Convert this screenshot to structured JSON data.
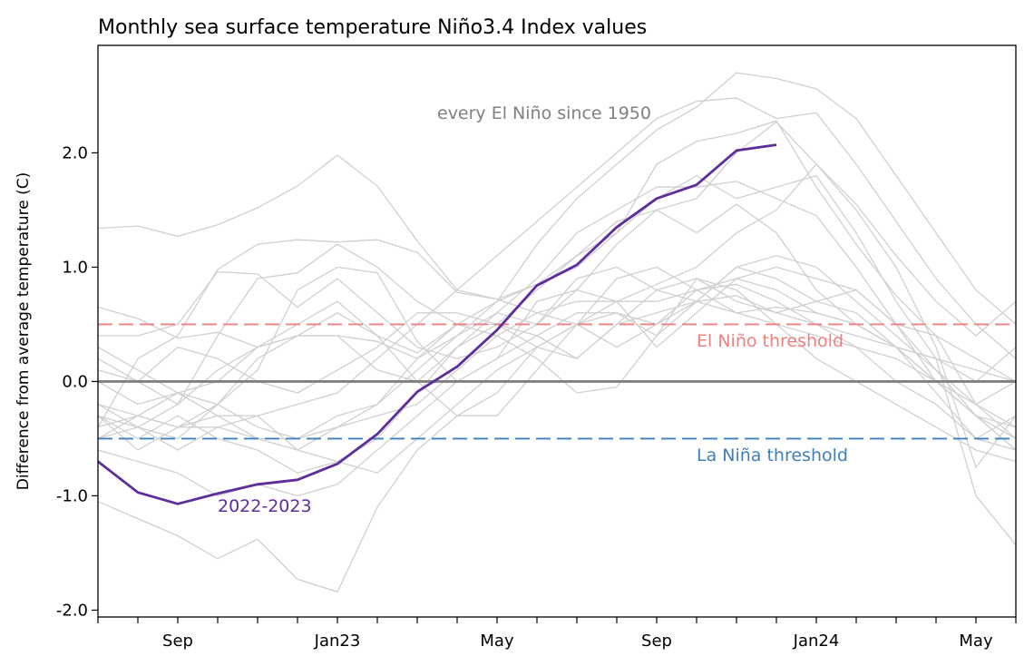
{
  "chart_data": {
    "type": "line",
    "title": "Monthly sea surface temperature Niño3.4 Index values",
    "xlabel": "",
    "ylabel": "Difference from average temperature (C)",
    "ylim": [
      -2.06,
      2.94
    ],
    "grid": false,
    "x": [
      "2022-07",
      "2022-08",
      "2022-09",
      "2022-10",
      "2022-11",
      "2022-12",
      "2023-01",
      "2023-02",
      "2023-03",
      "2023-04",
      "2023-05",
      "2023-06",
      "2023-07",
      "2023-08",
      "2023-09",
      "2023-10",
      "2023-11",
      "2023-12",
      "2024-01",
      "2024-02",
      "2024-03",
      "2024-04",
      "2024-05",
      "2024-06"
    ],
    "xtick_labels": [
      {
        "month": "2022-09",
        "label": "Sep"
      },
      {
        "month": "2023-01",
        "label": "Jan23"
      },
      {
        "month": "2023-05",
        "label": "May"
      },
      {
        "month": "2023-09",
        "label": "Sep"
      },
      {
        "month": "2024-01",
        "label": "Jan24"
      },
      {
        "month": "2024-05",
        "label": "May"
      }
    ],
    "yticks": [
      {
        "value": 2,
        "label": "2.0"
      },
      {
        "value": 1,
        "label": "1.0"
      },
      {
        "value": 0,
        "label": "0.0"
      },
      {
        "value": -1,
        "label": "-1.0"
      },
      {
        "value": -2,
        "label": "-2.0"
      }
    ],
    "thresholds": [
      {
        "value": 0.5,
        "label": "El Niño threshold",
        "color": "#f08080"
      },
      {
        "value": -0.5,
        "label": "La Niña threshold",
        "color": "#3f7fbf"
      }
    ],
    "zero_line_color": "#808080",
    "background_label": "every El Niño since 1950",
    "background_color": "#d0d0d0",
    "highlight": {
      "name": "2022-2023",
      "color": "#5e2d9c",
      "values": [
        -0.7,
        -0.97,
        -1.07,
        -0.98,
        -0.9,
        -0.86,
        -0.72,
        -0.46,
        -0.09,
        0.13,
        0.45,
        0.84,
        1.02,
        1.35,
        1.6,
        1.72,
        2.02,
        2.07
      ]
    },
    "background_series": [
      [
        -0.4,
        -0.3,
        -0.4,
        -0.4,
        -0.5,
        -0.5,
        -0.4,
        -0.2,
        0.1,
        0.4,
        0.7,
        1.2,
        1.6,
        1.9,
        2.2,
        2.4,
        2.7,
        2.65,
        2.56,
        2.3,
        1.8,
        1.3,
        0.8,
        0.5
      ],
      [
        -0.5,
        -0.3,
        -0.4,
        -0.3,
        -0.3,
        -0.2,
        -0.1,
        0.2,
        0.5,
        0.8,
        1.1,
        1.4,
        1.7,
        2.0,
        2.3,
        2.45,
        2.48,
        2.3,
        2.35,
        1.9,
        1.4,
        0.9,
        0.5,
        0.2
      ],
      [
        1.34,
        1.36,
        1.27,
        1.37,
        1.52,
        1.71,
        1.98,
        1.71,
        1.23,
        0.8,
        0.72,
        0.85,
        1.0,
        1.3,
        1.9,
        2.1,
        2.17,
        2.28,
        1.7,
        1.2,
        0.75,
        0.4,
        -0.2,
        -0.5
      ],
      [
        0.65,
        0.55,
        0.38,
        0.43,
        0.3,
        0.4,
        0.4,
        0.35,
        0.2,
        0.4,
        0.6,
        0.5,
        0.8,
        1.2,
        1.5,
        1.6,
        2.0,
        2.27,
        1.9,
        1.5,
        1.0,
        0.3,
        -0.75,
        -0.3
      ],
      [
        0.2,
        0.0,
        -0.2,
        0.1,
        0.3,
        0.5,
        0.7,
        0.4,
        0.25,
        0.5,
        0.7,
        0.85,
        1.1,
        1.3,
        1.6,
        1.8,
        1.6,
        1.7,
        1.8,
        1.3,
        0.7,
        0.2,
        -1.0,
        -1.43
      ],
      [
        -0.3,
        -0.4,
        -0.2,
        0.4,
        0.9,
        0.95,
        1.2,
        1.0,
        0.7,
        0.5,
        0.5,
        0.8,
        1.1,
        1.4,
        1.5,
        1.3,
        1.55,
        1.3,
        0.8,
        0.5,
        0.3,
        0.0,
        -0.3,
        -0.6
      ],
      [
        -0.4,
        0.2,
        0.4,
        0.98,
        1.2,
        1.24,
        1.22,
        1.24,
        1.13,
        0.78,
        0.72,
        0.6,
        0.5,
        0.3,
        0.5,
        0.7,
        1.0,
        0.9,
        0.7,
        0.6,
        0.3,
        -0.1,
        -0.5,
        -0.6
      ],
      [
        0.4,
        0.4,
        0.5,
        0.96,
        0.94,
        0.65,
        0.9,
        0.6,
        0.3,
        0.2,
        0.3,
        0.5,
        0.9,
        1.0,
        0.8,
        0.7,
        0.75,
        0.6,
        0.5,
        0.4,
        0.3,
        0.2,
        0.0,
        0.3
      ],
      [
        -0.3,
        -0.6,
        -0.4,
        -0.2,
        0.1,
        0.8,
        1.0,
        0.95,
        0.35,
        0.0,
        0.2,
        0.7,
        0.8,
        0.7,
        0.85,
        1.0,
        1.3,
        1.5,
        1.9,
        1.55,
        1.1,
        0.7,
        0.4,
        0.7
      ],
      [
        -0.2,
        -0.4,
        -0.5,
        -0.2,
        0.2,
        0.4,
        0.4,
        0.1,
        0.0,
        0.3,
        0.6,
        0.9,
        1.3,
        1.5,
        1.7,
        1.7,
        1.75,
        1.6,
        1.45,
        1.0,
        0.5,
        0.0,
        -0.3,
        -0.5
      ],
      [
        -1.05,
        -1.2,
        -1.35,
        -1.55,
        -1.38,
        -1.73,
        -1.84,
        -1.1,
        -0.6,
        -0.3,
        -0.1,
        0.3,
        0.5,
        0.6,
        0.4,
        0.7,
        1.0,
        1.1,
        1.0,
        0.7,
        0.4,
        0.1,
        -0.3,
        -0.6
      ],
      [
        -0.6,
        -0.7,
        -0.8,
        -1.0,
        -0.9,
        -1.0,
        -0.9,
        -0.6,
        -0.3,
        0.0,
        0.2,
        0.4,
        0.6,
        0.6,
        0.5,
        0.8,
        0.9,
        0.8,
        0.6,
        0.5,
        0.3,
        0.0,
        -0.3,
        -0.4
      ],
      [
        0.0,
        -0.2,
        -0.1,
        -0.3,
        -0.5,
        -0.6,
        -0.4,
        -0.3,
        -0.2,
        0.1,
        0.4,
        0.6,
        0.7,
        0.7,
        0.3,
        0.6,
        0.9,
        1.0,
        0.9,
        0.8,
        0.5,
        0.4,
        0.2,
        0.0
      ],
      [
        -0.3,
        -0.5,
        -0.3,
        -0.5,
        -0.6,
        -0.8,
        -0.7,
        -0.5,
        -0.1,
        0.3,
        0.5,
        0.3,
        0.2,
        0.5,
        0.8,
        0.9,
        0.7,
        0.6,
        0.7,
        0.8,
        0.5,
        0.1,
        -0.2,
        -0.4
      ],
      [
        0.1,
        0.0,
        0.3,
        0.2,
        0.0,
        -0.1,
        0.1,
        0.3,
        0.6,
        0.6,
        0.5,
        0.4,
        0.2,
        0.5,
        0.6,
        0.7,
        0.6,
        0.65,
        0.6,
        0.5,
        0.3,
        0.2,
        0.1,
        0.0
      ],
      [
        -0.2,
        -0.3,
        -0.1,
        -0.2,
        -0.4,
        -0.5,
        -0.3,
        -0.2,
        0.2,
        0.5,
        0.4,
        0.2,
        -0.1,
        -0.05,
        0.4,
        0.9,
        0.8,
        0.5,
        0.2,
        0.0,
        -0.2,
        -0.4,
        -0.6,
        -0.7
      ],
      [
        -0.5,
        -0.4,
        -0.6,
        -0.4,
        -0.3,
        -0.6,
        -0.7,
        -0.8,
        -0.5,
        -0.2,
        0.1,
        0.3,
        0.5,
        0.7,
        0.7,
        0.8,
        0.6,
        0.5,
        0.4,
        0.3,
        0.0,
        -0.2,
        -0.5,
        -0.3
      ],
      [
        0.3,
        0.1,
        -0.1,
        0.0,
        0.3,
        0.4,
        0.6,
        0.4,
        0.0,
        -0.3,
        -0.3,
        0.1,
        0.5,
        0.9,
        1.0,
        0.8,
        0.85,
        0.7,
        0.5,
        0.3,
        0.2,
        0.0,
        -0.2,
        0.0
      ]
    ]
  }
}
